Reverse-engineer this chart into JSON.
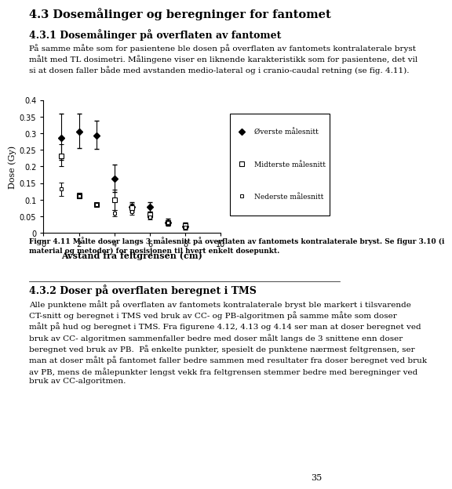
{
  "title_main": "4.3 Dosemålinger og beregninger for fantomet",
  "title_sub": "4.3.1 Dosemålinger på overflaten av fantomet",
  "paragraph1": "På samme måte som for pasientene ble dosen på overflaten av fantomets kontralaterale bryst\nmålt med TL dosimetri. Målingene viser en liknende karakteristikk som for pasientene, det vil\nsi at dosen faller både med avstanden medio-lateral og i cranio-caudal retning (se fig. 4.11).",
  "xlabel": "Avstand fra feltgrensen (cm)",
  "ylabel": "Dose (Gy)",
  "xlim": [
    0,
    10
  ],
  "ylim": [
    0,
    0.4
  ],
  "xticks": [
    0,
    2,
    4,
    6,
    8,
    10
  ],
  "yticks": [
    0,
    0.05,
    0.1,
    0.15,
    0.2,
    0.25,
    0.3,
    0.35,
    0.4
  ],
  "series1_label": "Øverste målesnitt",
  "series1_x": [
    1,
    2,
    3,
    4,
    5,
    6,
    7,
    8
  ],
  "series1_y": [
    0.285,
    0.305,
    0.292,
    0.163,
    0.078,
    0.078,
    0.032,
    0.02
  ],
  "series1_yerr_lo": [
    0.065,
    0.05,
    0.04,
    0.04,
    0.015,
    0.015,
    0.01,
    0.01
  ],
  "series1_yerr_hi": [
    0.075,
    0.055,
    0.045,
    0.042,
    0.015,
    0.015,
    0.01,
    0.01
  ],
  "series2_label": "Midterste målesnitt",
  "series2_x": [
    1,
    2,
    3,
    4,
    5,
    6,
    7,
    8
  ],
  "series2_y": [
    0.232,
    0.112,
    0.085,
    0.1,
    0.075,
    0.055,
    0.032,
    0.022
  ],
  "series2_yerr_lo": [
    0.03,
    0.008,
    0.005,
    0.03,
    0.012,
    0.01,
    0.006,
    0.008
  ],
  "series2_yerr_hi": [
    0.035,
    0.008,
    0.005,
    0.03,
    0.012,
    0.01,
    0.006,
    0.008
  ],
  "series3_label": "Nederste målesnitt",
  "series3_x": [
    1,
    2,
    3,
    4,
    5,
    6,
    7,
    8
  ],
  "series3_y": [
    0.132,
    0.112,
    0.085,
    0.06,
    0.065,
    0.048,
    0.03,
    0.018
  ],
  "series3_yerr_lo": [
    0.02,
    0.008,
    0.005,
    0.01,
    0.01,
    0.008,
    0.005,
    0.005
  ],
  "series3_yerr_hi": [
    0.02,
    0.008,
    0.005,
    0.01,
    0.01,
    0.008,
    0.005,
    0.005
  ],
  "caption": "Figur 4.11 Målte doser langs 3 målesnitt på overflaten av fantomets kontralaterale bryst. Se figur 3.10 (i\nmaterial og metoder) for posisjonen til hvert enkelt dosepunkt.",
  "title_sub2": "4.3.2 Doser på overflaten beregnet i TMS",
  "paragraph2": "Alle punktene målt på overflaten av fantomets kontralaterale bryst ble markert i tilsvarende\nCT-snitt og beregnet i TMS ved bruk av CC- og PB-algoritmen på samme måte som doser\nmålt på hud og beregnet i TMS. Fra figurene 4.12, 4.13 og 4.14 ser man at doser beregnet ved\nbruk av CC- algoritmen sammenfaller bedre med doser målt langs de 3 snittene enn doser\nberegnet ved bruk av PB.  På enkelte punkter, spesielt de punktene nærmest feltgrensen, ser\nman at doser målt på fantomet faller bedre sammen med resultater fra doser beregnet ved bruk\nav PB, mens de målepunkter lengst vekk fra feltgrensen stemmer bedre med beregninger ved\nbruk av CC-algoritmen.",
  "page_number": "35"
}
